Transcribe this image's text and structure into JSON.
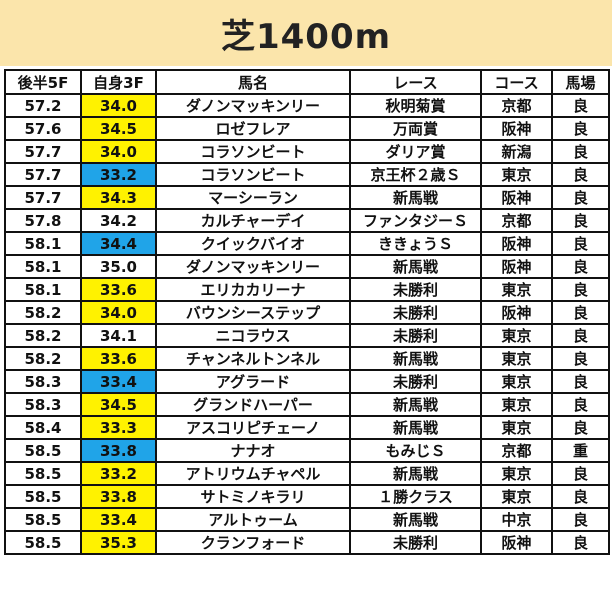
{
  "title": "芝1400m",
  "colors": {
    "title_bg": "#fbe5ab",
    "yellow": "#fff200",
    "blue": "#20a4e8"
  },
  "headers": [
    "後半5F",
    "自身3F",
    "馬名",
    "レース",
    "コース",
    "馬場"
  ],
  "rows": [
    {
      "l5f": "57.2",
      "own": "34.0",
      "hl": "yellow",
      "horse": "ダノンマッキンリー",
      "race": "秋明菊賞",
      "course": "京都",
      "going": "良"
    },
    {
      "l5f": "57.6",
      "own": "34.5",
      "hl": "yellow",
      "horse": "ロゼフレア",
      "race": "万両賞",
      "course": "阪神",
      "going": "良"
    },
    {
      "l5f": "57.7",
      "own": "34.0",
      "hl": "yellow",
      "horse": "コラソンビート",
      "race": "ダリア賞",
      "course": "新潟",
      "going": "良"
    },
    {
      "l5f": "57.7",
      "own": "33.2",
      "hl": "blue",
      "horse": "コラソンビート",
      "race": "京王杯２歳Ｓ",
      "course": "東京",
      "going": "良"
    },
    {
      "l5f": "57.7",
      "own": "34.3",
      "hl": "yellow",
      "horse": "マーシーラン",
      "race": "新馬戦",
      "course": "阪神",
      "going": "良"
    },
    {
      "l5f": "57.8",
      "own": "34.2",
      "hl": "none",
      "horse": "カルチャーデイ",
      "race": "ファンタジーＳ",
      "course": "京都",
      "going": "良"
    },
    {
      "l5f": "58.1",
      "own": "34.4",
      "hl": "blue",
      "horse": "クイックバイオ",
      "race": "ききょうＳ",
      "course": "阪神",
      "going": "良"
    },
    {
      "l5f": "58.1",
      "own": "35.0",
      "hl": "none",
      "horse": "ダノンマッキンリー",
      "race": "新馬戦",
      "course": "阪神",
      "going": "良"
    },
    {
      "l5f": "58.1",
      "own": "33.6",
      "hl": "yellow",
      "horse": "エリカカリーナ",
      "race": "未勝利",
      "course": "東京",
      "going": "良"
    },
    {
      "l5f": "58.2",
      "own": "34.0",
      "hl": "yellow",
      "horse": "バウンシーステップ",
      "race": "未勝利",
      "course": "阪神",
      "going": "良"
    },
    {
      "l5f": "58.2",
      "own": "34.1",
      "hl": "none",
      "horse": "ニコラウス",
      "race": "未勝利",
      "course": "東京",
      "going": "良"
    },
    {
      "l5f": "58.2",
      "own": "33.6",
      "hl": "yellow",
      "horse": "チャンネルトンネル",
      "race": "新馬戦",
      "course": "東京",
      "going": "良"
    },
    {
      "l5f": "58.3",
      "own": "33.4",
      "hl": "blue",
      "horse": "アグラード",
      "race": "未勝利",
      "course": "東京",
      "going": "良"
    },
    {
      "l5f": "58.3",
      "own": "34.5",
      "hl": "yellow",
      "horse": "グランドハーパー",
      "race": "新馬戦",
      "course": "東京",
      "going": "良"
    },
    {
      "l5f": "58.4",
      "own": "33.3",
      "hl": "yellow",
      "horse": "アスコリピチェーノ",
      "race": "新馬戦",
      "course": "東京",
      "going": "良"
    },
    {
      "l5f": "58.5",
      "own": "33.8",
      "hl": "blue",
      "horse": "ナナオ",
      "race": "もみじＳ",
      "course": "京都",
      "going": "重"
    },
    {
      "l5f": "58.5",
      "own": "33.2",
      "hl": "yellow",
      "horse": "アトリウムチャペル",
      "race": "新馬戦",
      "course": "東京",
      "going": "良"
    },
    {
      "l5f": "58.5",
      "own": "33.8",
      "hl": "yellow",
      "horse": "サトミノキラリ",
      "race": "１勝クラス",
      "course": "東京",
      "going": "良"
    },
    {
      "l5f": "58.5",
      "own": "33.4",
      "hl": "yellow",
      "horse": "アルトゥーム",
      "race": "新馬戦",
      "course": "中京",
      "going": "良"
    },
    {
      "l5f": "58.5",
      "own": "35.3",
      "hl": "yellow",
      "horse": "クランフォード",
      "race": "未勝利",
      "course": "阪神",
      "going": "良"
    }
  ]
}
